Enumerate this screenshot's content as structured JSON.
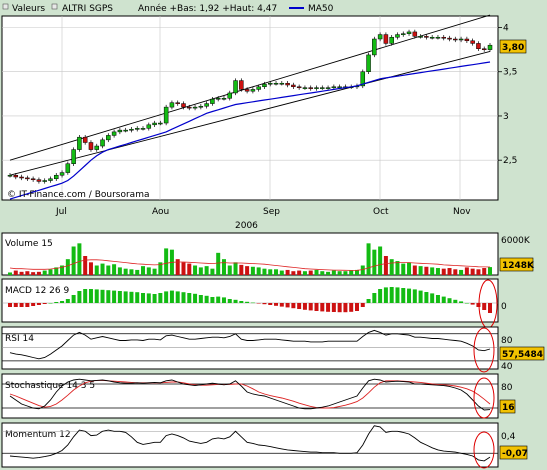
{
  "colors": {
    "background": "#cfe3cf",
    "panel": "#ffffff",
    "grid": "#c8c8c8",
    "up": "#13bb13",
    "down": "#cc1111",
    "ma": "#0000cc",
    "signal": "#dd2222",
    "badge": "#f2c200",
    "annotation": "#dd0000"
  },
  "header": {
    "valeurs": "Valeurs",
    "ticker": "ALTRI SGPS",
    "stats": "Année +Bas: 1,92 +Haut: 4,47",
    "ma_label": "MA50"
  },
  "credit": "© IT-Finance.com / Boursorama",
  "chart_data": [
    {
      "type": "candlestick",
      "title": "ALTRI SGPS",
      "year_label": "2006",
      "x_tick_labels": [
        "Jul",
        "Aou",
        "Sep",
        "Oct",
        "Nov"
      ],
      "y_tick_labels": [
        "2,5",
        "3",
        "3,5",
        "4"
      ],
      "ylim": [
        2.05,
        4.13
      ],
      "last_value_label": "3,80",
      "close": [
        2.33,
        2.31,
        2.3,
        2.29,
        2.28,
        2.26,
        2.27,
        2.29,
        2.33,
        2.36,
        2.46,
        2.62,
        2.76,
        2.7,
        2.62,
        2.66,
        2.73,
        2.78,
        2.82,
        2.84,
        2.84,
        2.85,
        2.86,
        2.86,
        2.9,
        2.92,
        2.92,
        3.1,
        3.15,
        3.14,
        3.1,
        3.09,
        3.1,
        3.11,
        3.14,
        3.19,
        3.2,
        3.2,
        3.26,
        3.4,
        3.3,
        3.28,
        3.3,
        3.33,
        3.36,
        3.37,
        3.37,
        3.37,
        3.35,
        3.33,
        3.32,
        3.32,
        3.31,
        3.32,
        3.32,
        3.32,
        3.33,
        3.33,
        3.33,
        3.33,
        3.34,
        3.5,
        3.69,
        3.87,
        3.92,
        3.82,
        3.89,
        3.92,
        3.93,
        3.95,
        3.9,
        3.9,
        3.89,
        3.89,
        3.89,
        3.88,
        3.87,
        3.86,
        3.87,
        3.85,
        3.82,
        3.76,
        3.75,
        3.8
      ],
      "ma50": [
        2.06,
        2.08,
        2.1,
        2.12,
        2.14,
        2.16,
        2.18,
        2.2,
        2.22,
        2.24,
        2.27,
        2.32,
        2.38,
        2.44,
        2.5,
        2.55,
        2.59,
        2.62,
        2.64,
        2.66,
        2.68,
        2.7,
        2.72,
        2.74,
        2.76,
        2.78,
        2.8,
        2.82,
        2.85,
        2.88,
        2.91,
        2.94,
        2.97,
        3.0,
        3.03,
        3.05,
        3.07,
        3.09,
        3.11,
        3.13,
        3.14,
        3.15,
        3.16,
        3.17,
        3.18,
        3.19,
        3.2,
        3.21,
        3.22,
        3.23,
        3.24,
        3.25,
        3.26,
        3.27,
        3.28,
        3.29,
        3.3,
        3.31,
        3.32,
        3.33,
        3.34,
        3.36,
        3.38,
        3.4,
        3.42,
        3.43,
        3.44,
        3.45,
        3.46,
        3.47,
        3.48,
        3.49,
        3.5,
        3.51,
        3.52,
        3.53,
        3.54,
        3.55,
        3.56,
        3.57,
        3.58,
        3.59,
        3.6,
        3.61
      ],
      "trendlines": [
        {
          "from": [
            0,
            2.5
          ],
          "to": [
            83,
            4.14
          ]
        },
        {
          "from": [
            0,
            2.33
          ],
          "to": [
            83,
            3.73
          ]
        }
      ]
    },
    {
      "type": "bar",
      "title": "Volume 15",
      "y_tick_labels": [
        "6000K"
      ],
      "ylim": [
        0,
        6000
      ],
      "last_value_label": "1248K",
      "volume": [
        400,
        700,
        500,
        600,
        450,
        500,
        700,
        900,
        1200,
        1500,
        2500,
        4500,
        5000,
        3000,
        2000,
        1500,
        1800,
        1500,
        1700,
        1200,
        1000,
        900,
        800,
        1400,
        1200,
        1000,
        2000,
        4200,
        4000,
        2500,
        2000,
        1800,
        1500,
        1200,
        1400,
        1000,
        3500,
        2500,
        1500,
        2000,
        1600,
        1400,
        1300,
        1200,
        1000,
        900,
        900,
        700,
        800,
        600,
        700,
        600,
        700,
        800,
        600,
        500,
        700,
        600,
        600,
        700,
        800,
        1500,
        5000,
        4000,
        4500,
        3000,
        2500,
        2200,
        1800,
        2000,
        1500,
        1400,
        1300,
        1200,
        1100,
        1000,
        1100,
        900,
        800,
        1200,
        1000,
        900,
        1100,
        1248
      ],
      "volume_avg": [
        1100,
        1000,
        1000,
        950,
        900,
        900,
        900,
        950,
        1050,
        1200,
        1450,
        1800,
        2150,
        2350,
        2400,
        2400,
        2350,
        2250,
        2150,
        2050,
        1950,
        1850,
        1750,
        1700,
        1650,
        1600,
        1650,
        1850,
        2000,
        2050,
        2050,
        2000,
        1950,
        1900,
        1850,
        1800,
        1900,
        1950,
        1900,
        1900,
        1900,
        1850,
        1800,
        1750,
        1700,
        1600,
        1500,
        1400,
        1300,
        1200,
        1100,
        1000,
        950,
        900,
        850,
        800,
        780,
        760,
        740,
        730,
        740,
        850,
        1150,
        1400,
        1650,
        1800,
        1900,
        1950,
        1950,
        1950,
        1900,
        1850,
        1800,
        1750,
        1700,
        1600,
        1550,
        1500,
        1450,
        1400,
        1350,
        1300,
        1280,
        1260
      ]
    },
    {
      "type": "bar",
      "title": "MACD 12 26 9",
      "y_tick_labels": [
        "0"
      ],
      "ylim": [
        -0.09,
        0.11
      ],
      "macd": [
        -0.02,
        -0.02,
        -0.02,
        -0.02,
        -0.015,
        -0.01,
        -0.005,
        0.0,
        0.005,
        0.01,
        0.02,
        0.04,
        0.06,
        0.07,
        0.07,
        0.068,
        0.066,
        0.064,
        0.062,
        0.06,
        0.058,
        0.056,
        0.054,
        0.05,
        0.048,
        0.045,
        0.05,
        0.058,
        0.062,
        0.058,
        0.054,
        0.05,
        0.046,
        0.04,
        0.036,
        0.03,
        0.032,
        0.028,
        0.02,
        0.016,
        0.01,
        0.006,
        0.002,
        -0.002,
        -0.006,
        -0.01,
        -0.014,
        -0.018,
        -0.022,
        -0.026,
        -0.03,
        -0.034,
        -0.037,
        -0.04,
        -0.042,
        -0.044,
        -0.045,
        -0.046,
        -0.046,
        -0.044,
        -0.04,
        -0.02,
        0.02,
        0.05,
        0.07,
        0.078,
        0.08,
        0.078,
        0.075,
        0.072,
        0.068,
        0.062,
        0.055,
        0.048,
        0.04,
        0.032,
        0.024,
        0.016,
        0.008,
        0.0,
        -0.008,
        -0.02,
        -0.035,
        -0.05
      ]
    },
    {
      "type": "line",
      "title": "RSI 14",
      "y_tick_labels": [
        "80",
        "60",
        "40"
      ],
      "ylim": [
        28,
        90
      ],
      "last_value_label": "57,5484",
      "rsi": [
        52,
        50,
        49,
        47,
        45,
        43,
        45,
        50,
        56,
        62,
        70,
        78,
        82,
        78,
        72,
        74,
        76,
        74,
        72,
        70,
        70,
        71,
        71,
        70,
        72,
        72,
        71,
        77,
        78,
        76,
        74,
        72,
        72,
        73,
        74,
        75,
        75,
        74,
        76,
        80,
        72,
        70,
        70,
        71,
        72,
        72,
        72,
        71,
        70,
        69,
        69,
        69,
        68,
        68,
        68,
        69,
        69,
        69,
        69,
        69,
        69,
        76,
        82,
        85,
        82,
        78,
        80,
        80,
        79,
        78,
        75,
        75,
        74,
        73,
        73,
        72,
        71,
        70,
        69,
        66,
        62,
        56,
        55,
        57.5484
      ]
    },
    {
      "type": "line",
      "title": "Stochastique 14 3 5",
      "y_tick_labels": [
        "80",
        "20"
      ],
      "ylim": [
        -5,
        105
      ],
      "last_value_label": "16",
      "stoch_k": [
        50,
        40,
        30,
        25,
        20,
        18,
        25,
        40,
        60,
        75,
        85,
        90,
        92,
        90,
        88,
        89,
        90,
        88,
        85,
        83,
        82,
        82,
        83,
        82,
        83,
        84,
        83,
        88,
        90,
        85,
        80,
        78,
        76,
        78,
        80,
        82,
        80,
        78,
        80,
        88,
        75,
        60,
        55,
        52,
        50,
        45,
        40,
        35,
        30,
        25,
        20,
        18,
        18,
        20,
        22,
        25,
        30,
        35,
        40,
        45,
        50,
        70,
        88,
        92,
        90,
        85,
        86,
        87,
        86,
        85,
        80,
        80,
        79,
        78,
        77,
        76,
        74,
        70,
        65,
        55,
        40,
        25,
        15,
        16
      ],
      "stoch_d": [
        55,
        50,
        44,
        38,
        32,
        26,
        22,
        24,
        30,
        40,
        52,
        65,
        75,
        83,
        87,
        89,
        89,
        88,
        87,
        86,
        85,
        84,
        83,
        83,
        83,
        83,
        83,
        84,
        85,
        85,
        83,
        80,
        78,
        77,
        77,
        78,
        79,
        79,
        79,
        80,
        80,
        75,
        68,
        60,
        55,
        51,
        48,
        45,
        41,
        37,
        32,
        28,
        24,
        21,
        20,
        20,
        21,
        24,
        27,
        31,
        36,
        45,
        58,
        72,
        83,
        88,
        88,
        88,
        87,
        86,
        85,
        84,
        82,
        80,
        79,
        78,
        77,
        75,
        72,
        68,
        62,
        53,
        42,
        30
      ]
    },
    {
      "type": "line",
      "title": "Momentum 12",
      "y_tick_labels": [
        "0,4",
        "0"
      ],
      "ylim": [
        -0.25,
        0.55
      ],
      "last_value_label": "-0,07",
      "momentum": [
        -0.05,
        -0.06,
        -0.07,
        -0.08,
        -0.09,
        -0.08,
        -0.06,
        -0.04,
        0.0,
        0.05,
        0.15,
        0.3,
        0.42,
        0.4,
        0.32,
        0.33,
        0.4,
        0.42,
        0.4,
        0.4,
        0.38,
        0.3,
        0.2,
        0.16,
        0.18,
        0.2,
        0.2,
        0.32,
        0.35,
        0.32,
        0.28,
        0.22,
        0.2,
        0.18,
        0.2,
        0.26,
        0.28,
        0.26,
        0.3,
        0.4,
        0.3,
        0.2,
        0.18,
        0.15,
        0.14,
        0.12,
        0.1,
        0.08,
        0.06,
        0.05,
        0.04,
        0.03,
        0.02,
        0.02,
        0.01,
        0.01,
        0.01,
        0.0,
        0.0,
        0.0,
        0.01,
        0.15,
        0.35,
        0.5,
        0.48,
        0.38,
        0.4,
        0.4,
        0.38,
        0.35,
        0.28,
        0.2,
        0.15,
        0.1,
        0.06,
        0.04,
        0.03,
        0.02,
        0.0,
        -0.02,
        -0.05,
        -0.12,
        -0.14,
        -0.07
      ]
    }
  ]
}
